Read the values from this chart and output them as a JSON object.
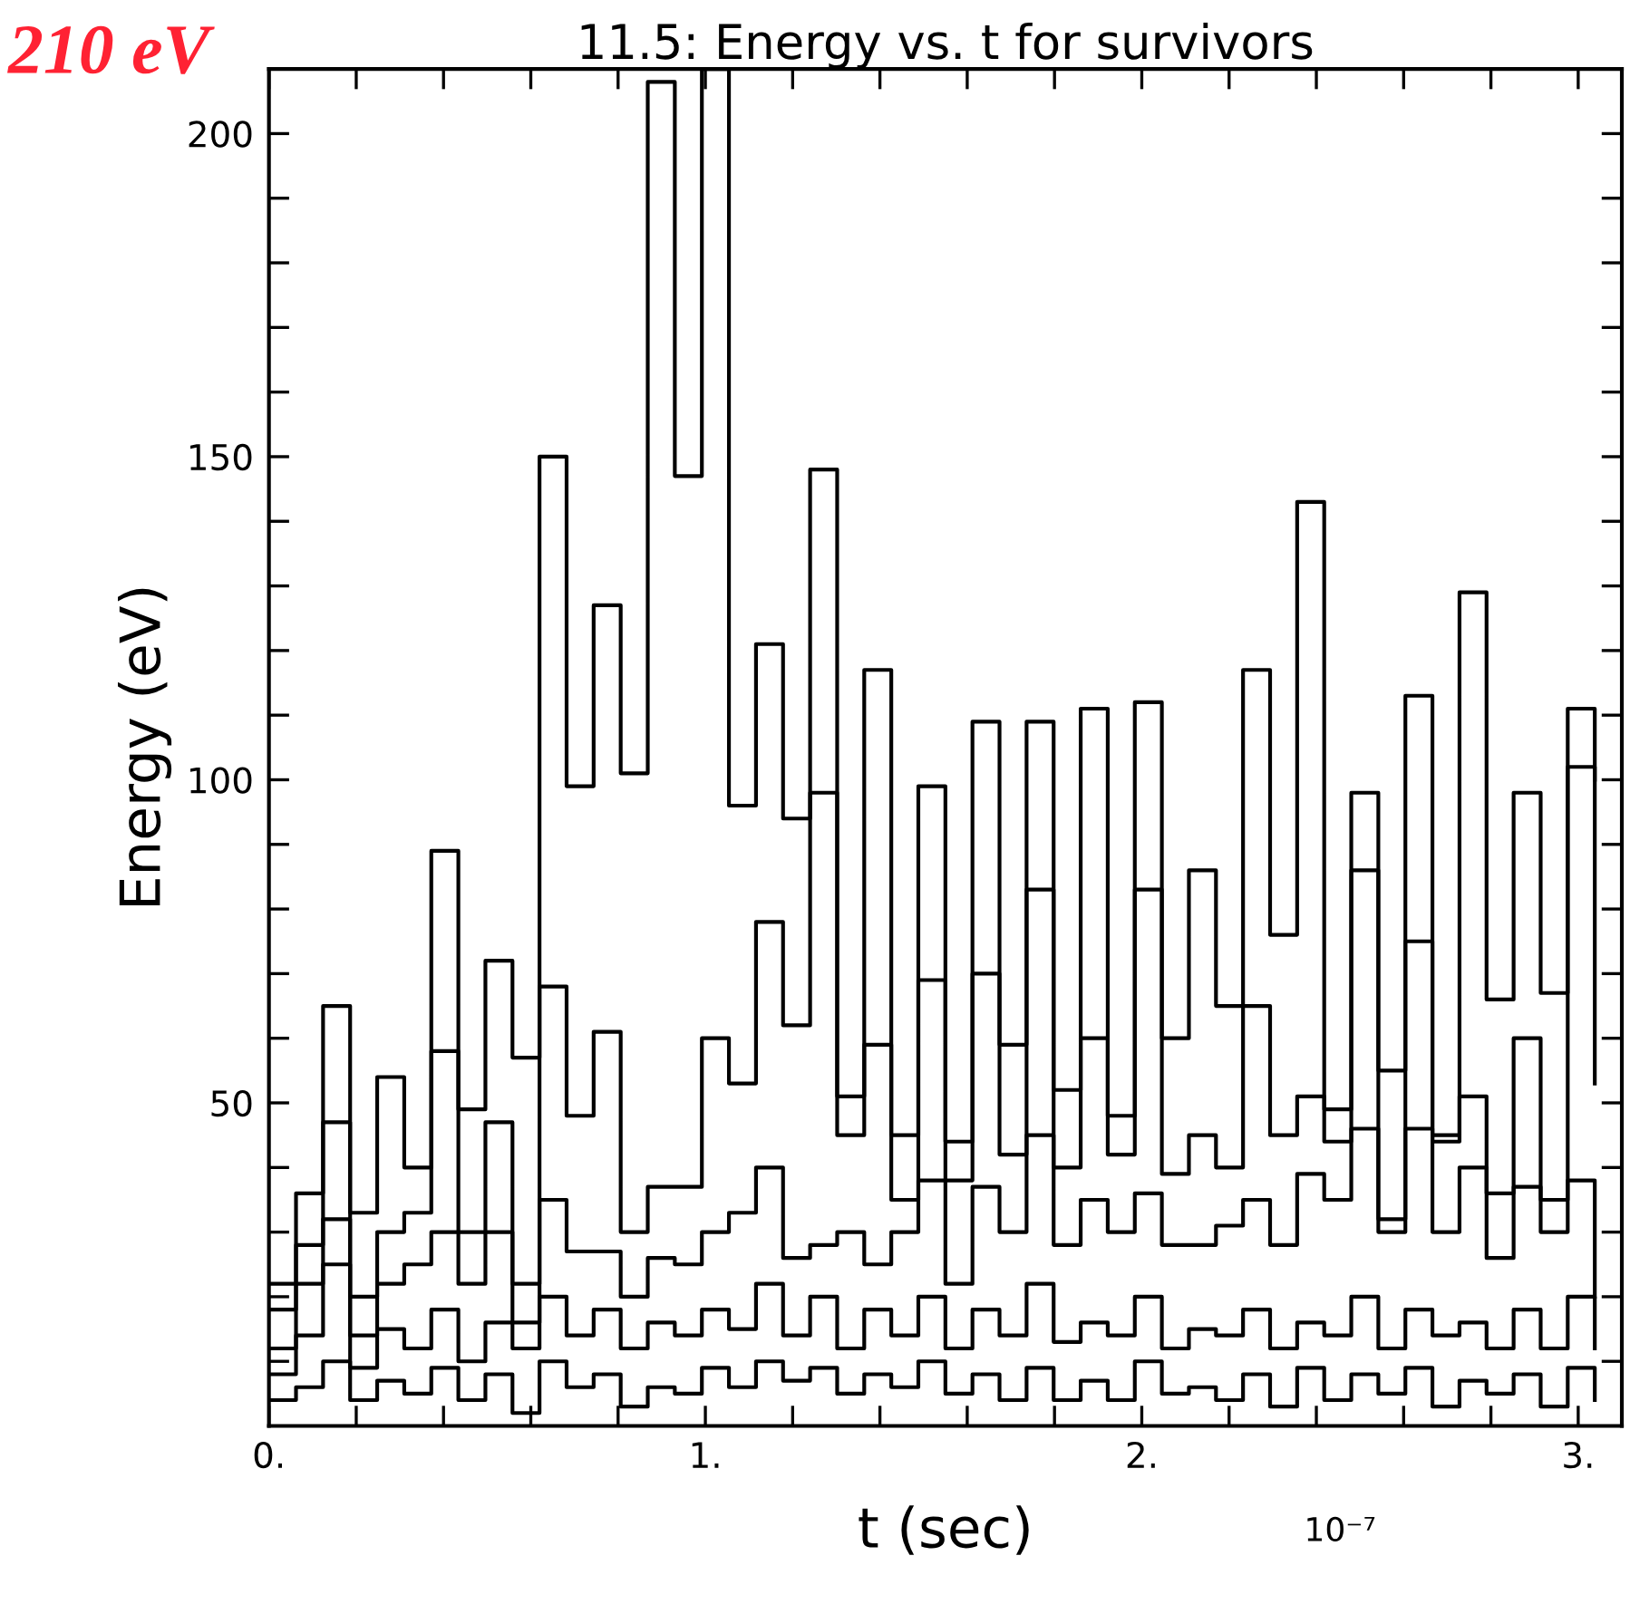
{
  "chart_data": {
    "type": "step",
    "title": "11.5: Energy vs. t for survivors",
    "xlabel": "t (sec)",
    "ylabel": "Energy (eV)",
    "annotations": [
      "210 eV",
      "10⁻⁷"
    ],
    "x": [
      0,
      0.062,
      0.124,
      0.186,
      0.248,
      0.31,
      0.372,
      0.434,
      0.496,
      0.558,
      0.62,
      0.682,
      0.744,
      0.806,
      0.868,
      0.93,
      0.992,
      1.054,
      1.116,
      1.178,
      1.24,
      1.302,
      1.364,
      1.426,
      1.488,
      1.55,
      1.612,
      1.674,
      1.736,
      1.798,
      1.86,
      1.922,
      1.984,
      2.046,
      2.108,
      2.17,
      2.232,
      2.294,
      2.356,
      2.418,
      2.48,
      2.542,
      2.604,
      2.666,
      2.728,
      2.79,
      2.852,
      2.914,
      2.976,
      3.038
    ],
    "series": [
      {
        "color": "#000000",
        "values": [
          22,
          36,
          65,
          33,
          54,
          40,
          89,
          49,
          72,
          57,
          150,
          99,
          127,
          101,
          208,
          147,
          210,
          96,
          121,
          94,
          148,
          51,
          117,
          45,
          99,
          44,
          109,
          59,
          109,
          52,
          111,
          48,
          112,
          60,
          86,
          65,
          117,
          76,
          143,
          49,
          98,
          55,
          113,
          45,
          129,
          66,
          98,
          67,
          111,
          100
        ]
      },
      {
        "color": "#000000",
        "values": [
          18,
          28,
          47,
          20,
          30,
          33,
          58,
          30,
          47,
          22,
          68,
          48,
          61,
          30,
          37,
          37,
          60,
          53,
          78,
          62,
          98,
          45,
          59,
          35,
          69,
          38,
          70,
          42,
          83,
          40,
          60,
          42,
          83,
          39,
          45,
          40,
          65,
          45,
          51,
          44,
          86,
          32,
          75,
          44,
          51,
          36,
          60,
          35,
          102,
          53
        ]
      },
      {
        "color": "#000000",
        "values": [
          12,
          22,
          32,
          14,
          22,
          25,
          30,
          22,
          30,
          16,
          35,
          27,
          27,
          20,
          26,
          25,
          30,
          33,
          40,
          26,
          28,
          30,
          25,
          30,
          38,
          22,
          37,
          30,
          45,
          28,
          35,
          30,
          36,
          28,
          28,
          31,
          35,
          28,
          39,
          35,
          46,
          30,
          46,
          30,
          40,
          26,
          37,
          30,
          38,
          20
        ]
      },
      {
        "color": "#000000",
        "values": [
          8,
          14,
          25,
          9,
          15,
          12,
          18,
          10,
          16,
          12,
          20,
          14,
          18,
          12,
          16,
          14,
          18,
          15,
          22,
          14,
          20,
          12,
          18,
          14,
          20,
          12,
          18,
          14,
          22,
          13,
          16,
          14,
          20,
          12,
          15,
          14,
          18,
          12,
          16,
          14,
          20,
          12,
          18,
          14,
          16,
          12,
          18,
          12,
          20,
          12
        ]
      },
      {
        "color": "#000000",
        "values": [
          4,
          6,
          10,
          4,
          7,
          5,
          9,
          4,
          8,
          2,
          10,
          6,
          8,
          3,
          6,
          5,
          9,
          6,
          10,
          7,
          9,
          5,
          8,
          6,
          10,
          5,
          8,
          4,
          9,
          4,
          7,
          4,
          10,
          5,
          6,
          4,
          8,
          3,
          9,
          4,
          8,
          5,
          9,
          3,
          7,
          5,
          8,
          3,
          9,
          4
        ]
      }
    ],
    "xlim": [
      0,
      3.1
    ],
    "ylim": [
      0,
      210
    ],
    "xticks": [
      {
        "value": 0,
        "label": "0."
      },
      {
        "value": 0.2,
        "label": null
      },
      {
        "value": 0.4,
        "label": null
      },
      {
        "value": 0.6,
        "label": null
      },
      {
        "value": 0.8,
        "label": null
      },
      {
        "value": 1,
        "label": "1."
      },
      {
        "value": 1.2,
        "label": null
      },
      {
        "value": 1.4,
        "label": null
      },
      {
        "value": 1.6,
        "label": null
      },
      {
        "value": 1.8,
        "label": null
      },
      {
        "value": 2,
        "label": "2."
      },
      {
        "value": 2.2,
        "label": null
      },
      {
        "value": 2.4,
        "label": null
      },
      {
        "value": 2.6,
        "label": null
      },
      {
        "value": 2.8,
        "label": null
      },
      {
        "value": 3,
        "label": "3."
      }
    ],
    "yticks": [
      {
        "value": 10,
        "label": null
      },
      {
        "value": 20,
        "label": null
      },
      {
        "value": 30,
        "label": null
      },
      {
        "value": 40,
        "label": null
      },
      50,
      {
        "value": 60,
        "label": null
      },
      {
        "value": 70,
        "label": null
      },
      {
        "value": 80,
        "label": null
      },
      {
        "value": 90,
        "label": null
      },
      100,
      {
        "value": 110,
        "label": null
      },
      {
        "value": 120,
        "label": null
      },
      {
        "value": 130,
        "label": null
      },
      {
        "value": 140,
        "label": null
      },
      150,
      {
        "value": 160,
        "label": null
      },
      {
        "value": 170,
        "label": null
      },
      {
        "value": 180,
        "label": null
      },
      {
        "value": 190,
        "label": null
      },
      200
    ]
  }
}
